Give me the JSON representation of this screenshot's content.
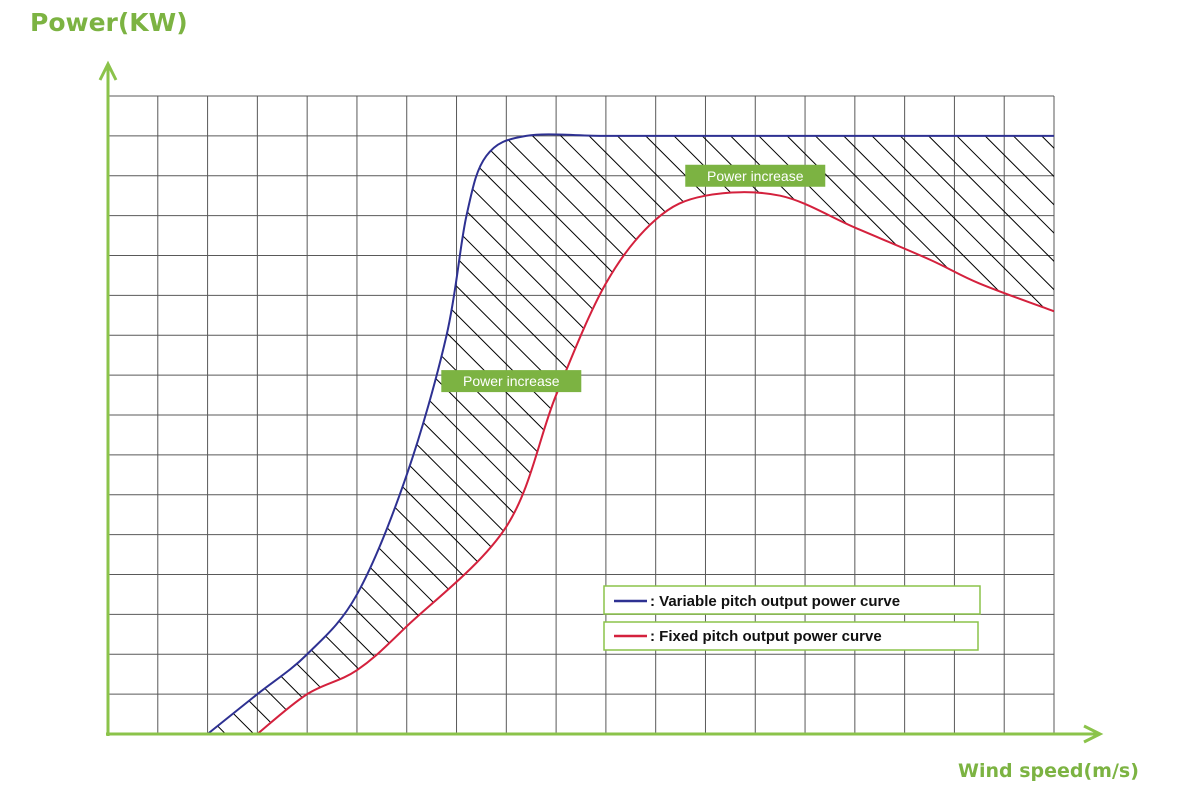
{
  "colors": {
    "axis": "#8bc34a",
    "axis_title": "#7cb342",
    "grid": "#595959",
    "variable_curve": "#2e3192",
    "fixed_curve": "#d4213d",
    "callout_bg": "#7cb342",
    "hatch": "#000000"
  },
  "chart_data": {
    "type": "line",
    "ylabel": "Power(KW)",
    "xlabel": "Wind speed(m/s)",
    "grid": true,
    "grid_columns": 19,
    "grid_rows": 16,
    "xlim": [
      0,
      19
    ],
    "ylim": [
      0,
      16
    ],
    "tick_labels_shown": false,
    "legend_position": "bottom-right",
    "series": [
      {
        "name": ": Variable pitch output power curve",
        "color": "#2e3192",
        "points": [
          [
            2,
            0
          ],
          [
            3,
            1
          ],
          [
            4,
            2
          ],
          [
            5,
            3.5
          ],
          [
            6,
            6.5
          ],
          [
            6.8,
            10
          ],
          [
            7.2,
            13
          ],
          [
            7.6,
            14.5
          ],
          [
            8.4,
            15
          ],
          [
            10,
            15
          ],
          [
            12,
            15
          ],
          [
            14,
            15
          ],
          [
            16,
            15
          ],
          [
            19,
            15
          ]
        ]
      },
      {
        "name": ": Fixed pitch output power curve",
        "color": "#d4213d",
        "points": [
          [
            3,
            0
          ],
          [
            4,
            1
          ],
          [
            5,
            1.6
          ],
          [
            6,
            2.7
          ],
          [
            8,
            5.2
          ],
          [
            9,
            8.5
          ],
          [
            10,
            11.3
          ],
          [
            11,
            12.9
          ],
          [
            12,
            13.5
          ],
          [
            13.5,
            13.5
          ],
          [
            15,
            12.7
          ],
          [
            16.5,
            11.9
          ],
          [
            17.5,
            11.3
          ],
          [
            19,
            10.6
          ]
        ]
      }
    ],
    "shaded_region": {
      "between": [
        ": Variable pitch output power curve",
        ": Fixed pitch output power curve"
      ],
      "pattern": "diagonal-hatch"
    },
    "annotations": [
      {
        "text": "Power increase",
        "x": 8.1,
        "y": 8.85
      },
      {
        "text": "Power increase",
        "x": 13.0,
        "y": 14.0
      }
    ]
  }
}
